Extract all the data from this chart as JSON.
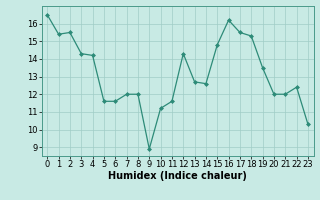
{
  "x": [
    0,
    1,
    2,
    3,
    4,
    5,
    6,
    7,
    8,
    9,
    10,
    11,
    12,
    13,
    14,
    15,
    16,
    17,
    18,
    19,
    20,
    21,
    22,
    23
  ],
  "y": [
    16.5,
    15.4,
    15.5,
    14.3,
    14.2,
    11.6,
    11.6,
    12.0,
    12.0,
    8.9,
    11.2,
    11.6,
    14.3,
    12.7,
    12.6,
    14.8,
    16.2,
    15.5,
    15.3,
    13.5,
    12.0,
    12.0,
    12.4,
    10.3
  ],
  "xlabel": "Humidex (Indice chaleur)",
  "xlim": [
    -0.5,
    23.5
  ],
  "ylim": [
    8.5,
    17.0
  ],
  "yticks": [
    9,
    10,
    11,
    12,
    13,
    14,
    15,
    16
  ],
  "xticks": [
    0,
    1,
    2,
    3,
    4,
    5,
    6,
    7,
    8,
    9,
    10,
    11,
    12,
    13,
    14,
    15,
    16,
    17,
    18,
    19,
    20,
    21,
    22,
    23
  ],
  "line_color": "#2d8b78",
  "marker_color": "#2d8b78",
  "bg_color": "#c8eae4",
  "grid_color": "#a0cdc6",
  "tick_fontsize": 6.0,
  "xlabel_fontsize": 7.0,
  "linewidth": 0.9,
  "markersize": 2.0
}
